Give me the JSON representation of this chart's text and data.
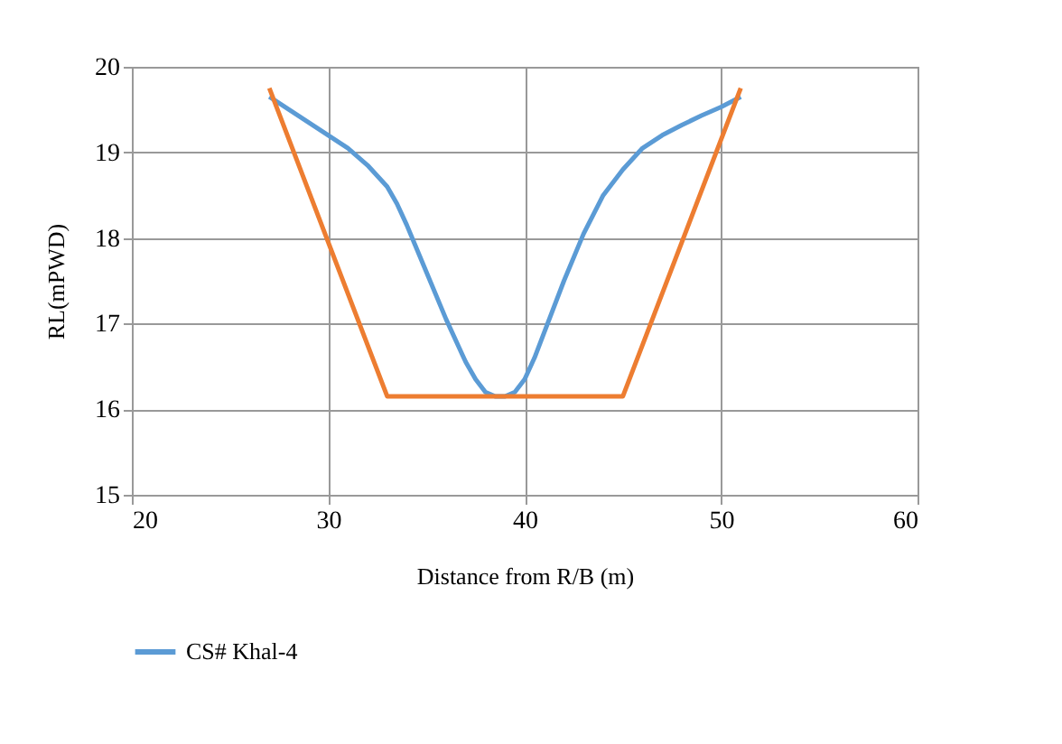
{
  "chart_data": {
    "type": "line",
    "xlabel": "Distance from R/B (m)",
    "ylabel": "RL(mPWD)",
    "xlim": [
      20,
      60
    ],
    "xticks": [
      20,
      30,
      40,
      50,
      60
    ],
    "ylim": [
      15,
      20
    ],
    "yticks": [
      15,
      16,
      17,
      18,
      19,
      20
    ],
    "grid": true,
    "legend": "bottom",
    "marker": "none",
    "line_style": "solid",
    "series": [
      {
        "name": "CS# Khal-4",
        "color": "#5b9bd5",
        "x": [
          27,
          28,
          29,
          30,
          31,
          32,
          33,
          33.5,
          34,
          35,
          36,
          37,
          37.5,
          38,
          38.5,
          39,
          39.5,
          40,
          40.5,
          41,
          42,
          43,
          44,
          45,
          46,
          47,
          48,
          49,
          50,
          51
        ],
        "values": [
          19.65,
          19.5,
          19.35,
          19.2,
          19.05,
          18.85,
          18.6,
          18.4,
          18.15,
          17.6,
          17.05,
          16.55,
          16.35,
          16.2,
          16.15,
          16.15,
          16.2,
          16.35,
          16.6,
          16.9,
          17.5,
          18.05,
          18.5,
          18.8,
          19.05,
          19.2,
          19.32,
          19.43,
          19.53,
          19.65
        ]
      },
      {
        "color": "#ed7d31",
        "x": [
          27,
          33,
          45,
          51
        ],
        "values": [
          19.75,
          16.15,
          16.15,
          19.75
        ]
      }
    ]
  }
}
